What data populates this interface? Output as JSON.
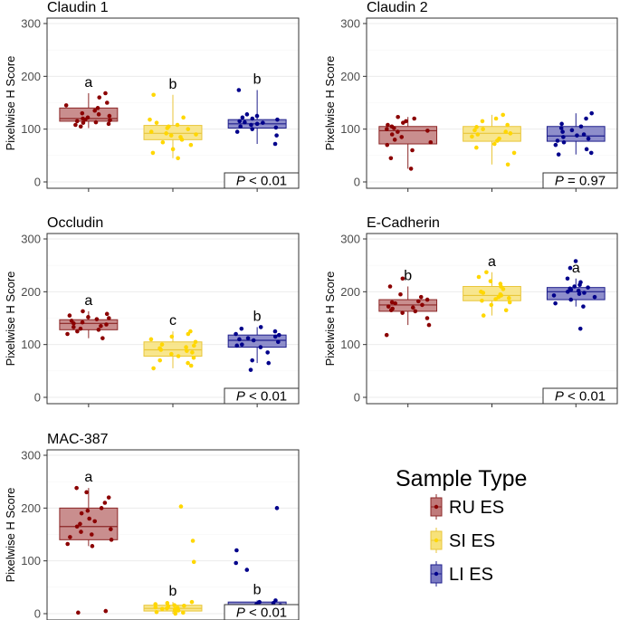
{
  "figure": {
    "ylabel": "Pixelwise H Score",
    "legend_title": "Sample Type",
    "groups": [
      "RU ES",
      "SI ES",
      "LI ES"
    ],
    "colors": {
      "RU ES": {
        "fill": "#c07a7a",
        "line": "#8b2525",
        "point": "#8b0000"
      },
      "SI ES": {
        "fill": "#f7e27a",
        "line": "#e9c63a",
        "point": "#ffd700"
      },
      "LI ES": {
        "fill": "#7a7ac2",
        "line": "#1e1e8c",
        "point": "#00008b"
      }
    }
  },
  "chart_data": [
    {
      "type": "box",
      "title": "Claudin 1",
      "ylabel": "Pixelwise H Score",
      "ylim": [
        0,
        300
      ],
      "yticks": [
        "0",
        "100",
        "200",
        "300"
      ],
      "p_value": "< 0.01",
      "letters": [
        "a",
        "b",
        "b"
      ],
      "series": [
        {
          "name": "RU ES",
          "q1": 115,
          "median": 120,
          "q3": 140,
          "whisker_low": 102,
          "whisker_high": 168,
          "points": [
            105,
            108,
            110,
            112,
            113,
            115,
            117,
            118,
            120,
            122,
            125,
            128,
            130,
            135,
            140,
            145,
            150,
            160,
            168
          ]
        },
        {
          "name": "SI ES",
          "q1": 80,
          "median": 92,
          "q3": 107,
          "whisker_low": 45,
          "whisker_high": 165,
          "points": [
            45,
            55,
            62,
            70,
            75,
            80,
            85,
            88,
            90,
            92,
            95,
            100,
            102,
            105,
            108,
            112,
            118,
            122,
            165
          ]
        },
        {
          "name": "LI ES",
          "q1": 102,
          "median": 110,
          "q3": 118,
          "whisker_low": 72,
          "whisker_high": 174,
          "points": [
            72,
            88,
            95,
            100,
            103,
            105,
            108,
            110,
            112,
            113,
            115,
            118,
            120,
            122,
            125,
            128,
            174
          ]
        }
      ]
    },
    {
      "type": "box",
      "title": "Claudin 2",
      "ylabel": "Pixelwise H Score",
      "ylim": [
        0,
        300
      ],
      "yticks": [
        "0",
        "100",
        "200",
        "300"
      ],
      "p_value": "= 0.97",
      "letters": [
        "",
        "",
        ""
      ],
      "series": [
        {
          "name": "RU ES",
          "q1": 72,
          "median": 97,
          "q3": 105,
          "whisker_low": 25,
          "whisker_high": 123,
          "points": [
            25,
            45,
            60,
            70,
            75,
            80,
            85,
            90,
            95,
            97,
            100,
            102,
            105,
            108,
            112,
            115,
            120,
            123
          ]
        },
        {
          "name": "SI ES",
          "q1": 77,
          "median": 92,
          "q3": 105,
          "whisker_low": 33,
          "whisker_high": 127,
          "points": [
            33,
            55,
            65,
            72,
            78,
            82,
            86,
            90,
            92,
            95,
            98,
            100,
            104,
            108,
            115,
            120,
            127
          ]
        },
        {
          "name": "LI ES",
          "q1": 77,
          "median": 87,
          "q3": 105,
          "whisker_low": 52,
          "whisker_high": 130,
          "points": [
            52,
            55,
            62,
            70,
            75,
            78,
            82,
            85,
            88,
            90,
            95,
            98,
            102,
            105,
            110,
            120,
            130
          ]
        }
      ]
    },
    {
      "type": "box",
      "title": "Occludin",
      "ylabel": "Pixelwise H Score",
      "ylim": [
        0,
        300
      ],
      "yticks": [
        "0",
        "100",
        "200",
        "300"
      ],
      "p_value": "< 0.01",
      "letters": [
        "a",
        "c",
        "b"
      ],
      "series": [
        {
          "name": "RU ES",
          "q1": 128,
          "median": 140,
          "q3": 147,
          "whisker_low": 112,
          "whisker_high": 163,
          "points": [
            112,
            120,
            125,
            128,
            130,
            133,
            135,
            138,
            140,
            142,
            145,
            148,
            150,
            152,
            155,
            158,
            163
          ]
        },
        {
          "name": "SI ES",
          "q1": 78,
          "median": 90,
          "q3": 105,
          "whisker_low": 55,
          "whisker_high": 125,
          "points": [
            55,
            60,
            65,
            70,
            75,
            78,
            82,
            85,
            88,
            90,
            93,
            95,
            98,
            100,
            105,
            110,
            115,
            120,
            125
          ]
        },
        {
          "name": "LI ES",
          "q1": 95,
          "median": 108,
          "q3": 118,
          "whisker_low": 65,
          "whisker_high": 133,
          "points": [
            52,
            65,
            70,
            85,
            95,
            98,
            100,
            105,
            108,
            110,
            112,
            115,
            118,
            120,
            125,
            130,
            133
          ]
        }
      ]
    },
    {
      "type": "box",
      "title": "E-Cadherin",
      "ylabel": "Pixelwise H Score",
      "ylim": [
        0,
        300
      ],
      "yticks": [
        "0",
        "100",
        "200",
        "300"
      ],
      "p_value": "< 0.01",
      "letters": [
        "b",
        "a",
        "a"
      ],
      "series": [
        {
          "name": "RU ES",
          "q1": 163,
          "median": 175,
          "q3": 185,
          "whisker_low": 137,
          "whisker_high": 210,
          "points": [
            118,
            137,
            150,
            160,
            163,
            165,
            168,
            170,
            172,
            175,
            178,
            180,
            182,
            185,
            190,
            195,
            210,
            225
          ]
        },
        {
          "name": "SI ES",
          "q1": 183,
          "median": 193,
          "q3": 210,
          "whisker_low": 155,
          "whisker_high": 237,
          "points": [
            155,
            165,
            175,
            180,
            183,
            186,
            188,
            190,
            193,
            195,
            198,
            200,
            205,
            210,
            215,
            220,
            228,
            237
          ]
        },
        {
          "name": "LI ES",
          "q1": 185,
          "median": 200,
          "q3": 208,
          "whisker_low": 172,
          "whisker_high": 225,
          "points": [
            130,
            172,
            178,
            185,
            190,
            193,
            196,
            198,
            200,
            202,
            204,
            206,
            208,
            210,
            213,
            218,
            225,
            245,
            258
          ]
        }
      ]
    },
    {
      "type": "box",
      "title": "MAC-387",
      "ylabel": "Pixelwise H Score",
      "ylim": [
        0,
        300
      ],
      "yticks": [
        "0",
        "100",
        "200",
        "300"
      ],
      "p_value": "< 0.01",
      "letters": [
        "a",
        "b",
        "b"
      ],
      "series": [
        {
          "name": "RU ES",
          "q1": 140,
          "median": 165,
          "q3": 200,
          "whisker_low": 128,
          "whisker_high": 238,
          "points": [
            2,
            5,
            128,
            132,
            140,
            145,
            150,
            155,
            160,
            165,
            170,
            175,
            180,
            190,
            195,
            200,
            210,
            220,
            230,
            238
          ]
        },
        {
          "name": "SI ES",
          "q1": 5,
          "median": 10,
          "q3": 16,
          "whisker_low": 0,
          "whisker_high": 22,
          "points": [
            0,
            2,
            3,
            5,
            6,
            8,
            9,
            10,
            11,
            12,
            14,
            15,
            16,
            18,
            20,
            22,
            98,
            138,
            203
          ]
        },
        {
          "name": "LI ES",
          "q1": 5,
          "median": 12,
          "q3": 22,
          "whisker_low": 0,
          "whisker_high": 25,
          "points": [
            0,
            2,
            3,
            5,
            7,
            9,
            10,
            12,
            14,
            16,
            18,
            20,
            22,
            25,
            83,
            96,
            120,
            200
          ]
        }
      ]
    }
  ]
}
